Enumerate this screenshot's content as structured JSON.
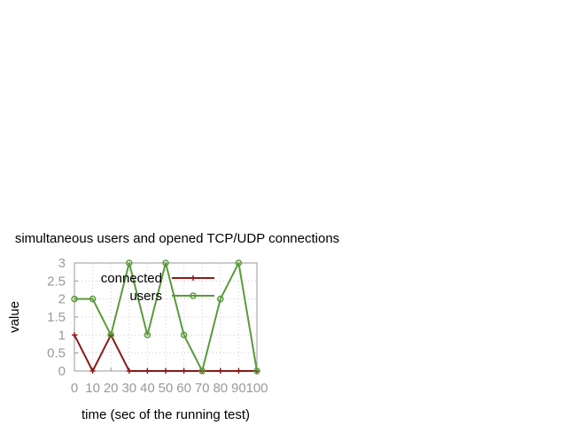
{
  "chart_data": {
    "type": "line",
    "title": "simultaneous users and opened TCP/UDP connections",
    "xlabel": "time (sec of the running test)",
    "ylabel": "value",
    "xlim": [
      0,
      100
    ],
    "ylim": [
      0,
      3
    ],
    "xticks": [
      "0",
      "10",
      "20",
      "30",
      "40",
      "50",
      "60",
      "70",
      "80",
      "90",
      "100"
    ],
    "yticks": [
      "0",
      "0.5",
      "1",
      "1.5",
      "2",
      "2.5",
      "3"
    ],
    "grid": true,
    "legend_position": "top-left",
    "series": [
      {
        "name": "connected",
        "color": "#8b1a1a",
        "marker": "plus",
        "x": [
          0,
          10,
          20,
          30,
          40,
          50,
          60,
          70,
          80,
          90,
          100
        ],
        "y": [
          1,
          0,
          1,
          0,
          0,
          0,
          0,
          0,
          0,
          0,
          0
        ]
      },
      {
        "name": "users",
        "color": "#5a9a3a",
        "marker": "circle",
        "x": [
          0,
          10,
          20,
          30,
          40,
          50,
          60,
          70,
          80,
          90,
          100
        ],
        "y": [
          2,
          2,
          1,
          3,
          1,
          3,
          1,
          0,
          2,
          3,
          0
        ]
      }
    ]
  }
}
